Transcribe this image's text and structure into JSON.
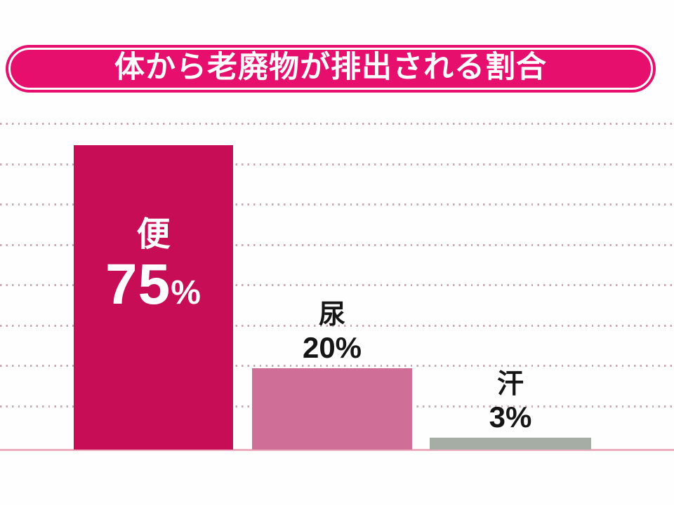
{
  "title": "体から老廃物が排出される割合",
  "chart_data": {
    "type": "bar",
    "title": "体から老廃物が排出される割合",
    "categories": [
      "便",
      "尿",
      "汗"
    ],
    "values": [
      75,
      20,
      3
    ],
    "values_display": [
      "75",
      "20",
      "3"
    ],
    "percent_sign": "%",
    "unit": "%",
    "ylim": [
      0,
      100
    ],
    "xlabel": "",
    "ylabel": "",
    "legend": "none",
    "grid": "dotted horizontal guide lines on notebook-style background",
    "bar_colors": [
      "#c60d56",
      "#cf6f98",
      "#a5ada5"
    ],
    "label_colors": [
      "#ffffff",
      "#151515",
      "#151515"
    ],
    "label_position": [
      "inside",
      "above",
      "above"
    ],
    "banner_color": "#e60f6e",
    "banner_text_color": "#ffffff",
    "baseline_color": "#ecaebe",
    "grid_color": "#c9aab4"
  }
}
